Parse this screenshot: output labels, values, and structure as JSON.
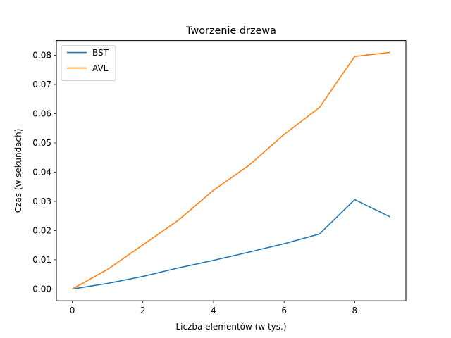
{
  "chart_data": {
    "type": "line",
    "title": "Tworzenie drzewa",
    "xlabel": "Liczba elementów (w tys.)",
    "ylabel": "Czas (w sekundach)",
    "xlim": [
      -0.45,
      9.45
    ],
    "ylim": [
      -0.00405,
      0.08505
    ],
    "xticks": [
      0,
      2,
      4,
      6,
      8
    ],
    "xtick_labels": [
      "0",
      "2",
      "4",
      "6",
      "8"
    ],
    "yticks": [
      0.0,
      0.01,
      0.02,
      0.03,
      0.04,
      0.05,
      0.06,
      0.07,
      0.08
    ],
    "ytick_labels": [
      "0.00",
      "0.01",
      "0.02",
      "0.03",
      "0.04",
      "0.05",
      "0.06",
      "0.07",
      "0.08"
    ],
    "grid": false,
    "legend_position": "top-left",
    "x": [
      0,
      1,
      2,
      3,
      4,
      5,
      6,
      7,
      8,
      9
    ],
    "series": [
      {
        "name": "BST",
        "color": "#1f77b4",
        "values": [
          0.0,
          0.0019,
          0.0043,
          0.0072,
          0.0098,
          0.0126,
          0.0155,
          0.0188,
          0.0306,
          0.0247
        ]
      },
      {
        "name": "AVL",
        "color": "#ff7f0e",
        "values": [
          0.0,
          0.0067,
          0.0151,
          0.0235,
          0.0338,
          0.0423,
          0.0529,
          0.0621,
          0.0796,
          0.081
        ]
      }
    ]
  }
}
